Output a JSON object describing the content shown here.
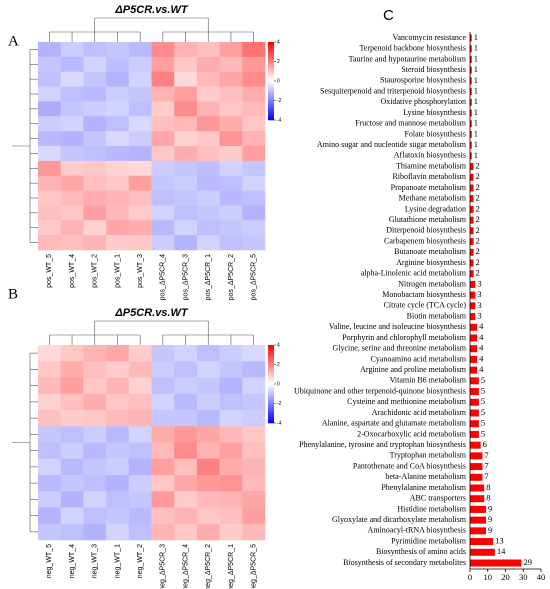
{
  "chart_data": [
    {
      "type": "heatmap",
      "panel_label": "A",
      "title": "ΔP5CR.vs.WT",
      "columns": [
        "pos_WT_5",
        "pos_WT_4",
        "pos_WT_2",
        "pos_WT_1",
        "pos_WT_3",
        "pos_ΔP5CR_4",
        "pos_ΔP5CR_3",
        "pos_ΔP5CR_1",
        "pos_ΔP5CR_2",
        "pos_ΔP5CR_5"
      ],
      "matrix": [
        [
          -1.2,
          -0.8,
          -1.0,
          -0.9,
          -1.1,
          1.8,
          1.2,
          1.0,
          1.5,
          2.2
        ],
        [
          -0.9,
          -1.1,
          -0.7,
          -1.0,
          -0.8,
          1.5,
          0.9,
          1.3,
          1.1,
          1.6
        ],
        [
          -1.0,
          -0.6,
          -0.9,
          -1.2,
          -0.7,
          2.0,
          0.6,
          1.1,
          1.4,
          1.8
        ],
        [
          -0.7,
          -1.0,
          -1.1,
          -0.8,
          -0.9,
          1.2,
          1.5,
          0.8,
          1.0,
          1.3
        ],
        [
          -1.3,
          -0.9,
          -0.8,
          -0.7,
          -1.0,
          0.8,
          1.8,
          1.2,
          0.9,
          1.1
        ],
        [
          -0.8,
          -0.7,
          -1.2,
          -1.0,
          -0.6,
          1.0,
          1.1,
          1.6,
          1.3,
          0.9
        ],
        [
          -1.1,
          -1.2,
          -0.9,
          -0.6,
          -0.8,
          1.4,
          0.7,
          0.9,
          1.7,
          1.2
        ],
        [
          -0.6,
          -0.9,
          -1.0,
          -1.1,
          -1.2,
          0.9,
          1.3,
          1.0,
          0.8,
          1.5
        ],
        [
          1.6,
          0.8,
          0.9,
          0.7,
          0.6,
          -0.8,
          -0.9,
          -1.0,
          -0.7,
          -0.9
        ],
        [
          1.2,
          1.4,
          1.0,
          0.9,
          1.5,
          -0.9,
          -0.8,
          -1.1,
          -1.0,
          -0.7
        ],
        [
          0.9,
          1.1,
          1.3,
          1.2,
          1.0,
          -1.0,
          -0.9,
          -0.8,
          -1.1,
          -1.0
        ],
        [
          1.0,
          0.9,
          1.5,
          1.1,
          0.8,
          -0.7,
          -1.0,
          -0.9,
          -0.8,
          -1.2
        ],
        [
          0.8,
          1.2,
          0.7,
          1.4,
          1.3,
          -1.1,
          -0.7,
          -1.0,
          -0.9,
          -0.8
        ],
        [
          1.1,
          1.0,
          1.2,
          0.8,
          0.9,
          -0.8,
          -1.2,
          -0.7,
          -1.0,
          -0.9
        ]
      ],
      "zlim": [
        -4,
        4
      ],
      "zticks": [
        4,
        2,
        0,
        -2,
        -4
      ],
      "colors": [
        "#0000ff",
        "#ffffff",
        "#ff0000"
      ]
    },
    {
      "type": "heatmap",
      "panel_label": "B",
      "title": "ΔP5CR.vs.WT",
      "columns": [
        "neg_WT_5",
        "neg_WT_4",
        "neg_WT_3",
        "neg_WT_1",
        "neg_WT_2",
        "neg_ΔP5CR_3",
        "neg_ΔP5CR_4",
        "neg_ΔP5CR_2",
        "neg_ΔP5CR_1",
        "neg_ΔP5CR_5"
      ],
      "matrix": [
        [
          0.6,
          0.9,
          1.2,
          1.4,
          0.8,
          -0.9,
          -0.7,
          -1.0,
          -0.8,
          -0.6
        ],
        [
          0.9,
          1.3,
          1.0,
          0.8,
          1.1,
          -0.8,
          -1.0,
          -0.7,
          -0.9,
          -1.1
        ],
        [
          1.1,
          1.5,
          0.9,
          1.2,
          0.7,
          -1.0,
          -0.8,
          -0.9,
          -1.2,
          -0.7
        ],
        [
          0.7,
          1.0,
          1.3,
          0.9,
          1.0,
          -0.7,
          -1.1,
          -0.8,
          -1.0,
          -0.9
        ],
        [
          1.0,
          0.8,
          0.9,
          1.1,
          1.2,
          -0.9,
          -0.9,
          -1.1,
          -0.7,
          -0.8
        ],
        [
          -0.9,
          -1.0,
          -0.8,
          -1.1,
          -0.7,
          1.3,
          1.6,
          1.4,
          1.1,
          0.9
        ],
        [
          -1.0,
          -0.8,
          -1.1,
          -0.9,
          -1.0,
          1.1,
          1.8,
          1.2,
          1.5,
          1.0
        ],
        [
          -0.7,
          -1.1,
          -0.9,
          -0.8,
          -1.2,
          1.5,
          1.0,
          2.0,
          1.3,
          1.2
        ],
        [
          -1.1,
          -0.9,
          -1.0,
          -1.2,
          -0.8,
          0.9,
          1.4,
          1.6,
          1.7,
          1.1
        ],
        [
          -0.8,
          -1.2,
          -0.7,
          -1.0,
          -0.9,
          1.6,
          0.8,
          1.1,
          1.2,
          1.4
        ],
        [
          -1.2,
          -0.7,
          -1.0,
          -0.9,
          -1.1,
          1.0,
          1.2,
          0.9,
          1.0,
          1.5
        ],
        [
          -0.9,
          -1.0,
          -1.2,
          -0.7,
          -1.0,
          1.2,
          0.9,
          1.3,
          0.8,
          1.1
        ]
      ],
      "zlim": [
        -4,
        4
      ],
      "zticks": [
        4,
        2,
        0,
        -2,
        -4
      ],
      "colors": [
        "#0000ff",
        "#ffffff",
        "#ff0000"
      ]
    },
    {
      "type": "bar",
      "orientation": "horizontal",
      "panel_label": "C",
      "categories": [
        "Vancomycin resistance",
        "Terpenoid backbone biosynthesis",
        "Taurine and hypotaurine metabolism",
        "Steroid biosynthesis",
        "Staurosporine biosynthesis",
        "Sesquiterpenoid and triterpenoid biosynthesis",
        "Oxidative phosphorylation",
        "Lysine biosynthesis",
        "Fructose and mannose metabolism",
        "Folate biosynthesis",
        "Amino sugar and nucleotide sugar metabolism",
        "Aflatoxin biosynthesis",
        "Thiamine metabolism",
        "Riboflavin metabolism",
        "Propanoate metabolism",
        "Methane metabolism",
        "Lysine degradation",
        "Glutathione metabolism",
        "Diterpenoid biosynthesis",
        "Carbapenem biosynthesis",
        "Butanoate metabolism",
        "Arginine biosynthesis",
        "alpha-Linolenic acid metabolism",
        "Nitrogen metabolism",
        "Monobactam biosynthesis",
        "Citrate cycle (TCA cycle)",
        "Biotin metabolism",
        "Valine, leucine and isoleucine biosynthesis",
        "Porphyrin and chlorophyll metabolism",
        "Glycine, serine and threonine metabolism",
        "Cyanoamino acid metabolism",
        "Arginine and proline metabolism",
        "Vitamin B6 metabolism",
        "Ubiquinone and other terpenoid-quinone biosynthesis",
        "Cysteine and methionine metabolism",
        "Arachidonic acid metabolism",
        "Alanine, aspartate and glutamate metabolism",
        "2-Oxocarboxylic acid metabolism",
        "Phenylalanine, tyrosine and tryptophan biosynthesis",
        "Tryptophan metabolism",
        "Pantothenate and CoA biosynthesis",
        "beta-Alanine metabolism",
        "Phenylalanine metabolism",
        "ABC transporters",
        "Histidine metabolism",
        "Glyoxylate and dicarboxylate metabolism",
        "Aminoacyl-tRNA biosynthesis",
        "Pyrimidine metabolism",
        "Biosynthesis of amino acids",
        "Biosynthesis of secondary metabolites"
      ],
      "values": [
        1,
        1,
        1,
        1,
        1,
        1,
        1,
        1,
        1,
        1,
        1,
        1,
        2,
        2,
        2,
        2,
        2,
        2,
        2,
        2,
        2,
        2,
        2,
        3,
        3,
        3,
        3,
        4,
        4,
        4,
        4,
        4,
        5,
        5,
        5,
        5,
        5,
        5,
        6,
        7,
        7,
        7,
        8,
        8,
        9,
        9,
        9,
        13,
        14,
        29
      ],
      "color": "#ff0000",
      "xlim": [
        0,
        40
      ],
      "xticks": [
        0,
        10,
        20,
        30,
        40
      ]
    }
  ]
}
